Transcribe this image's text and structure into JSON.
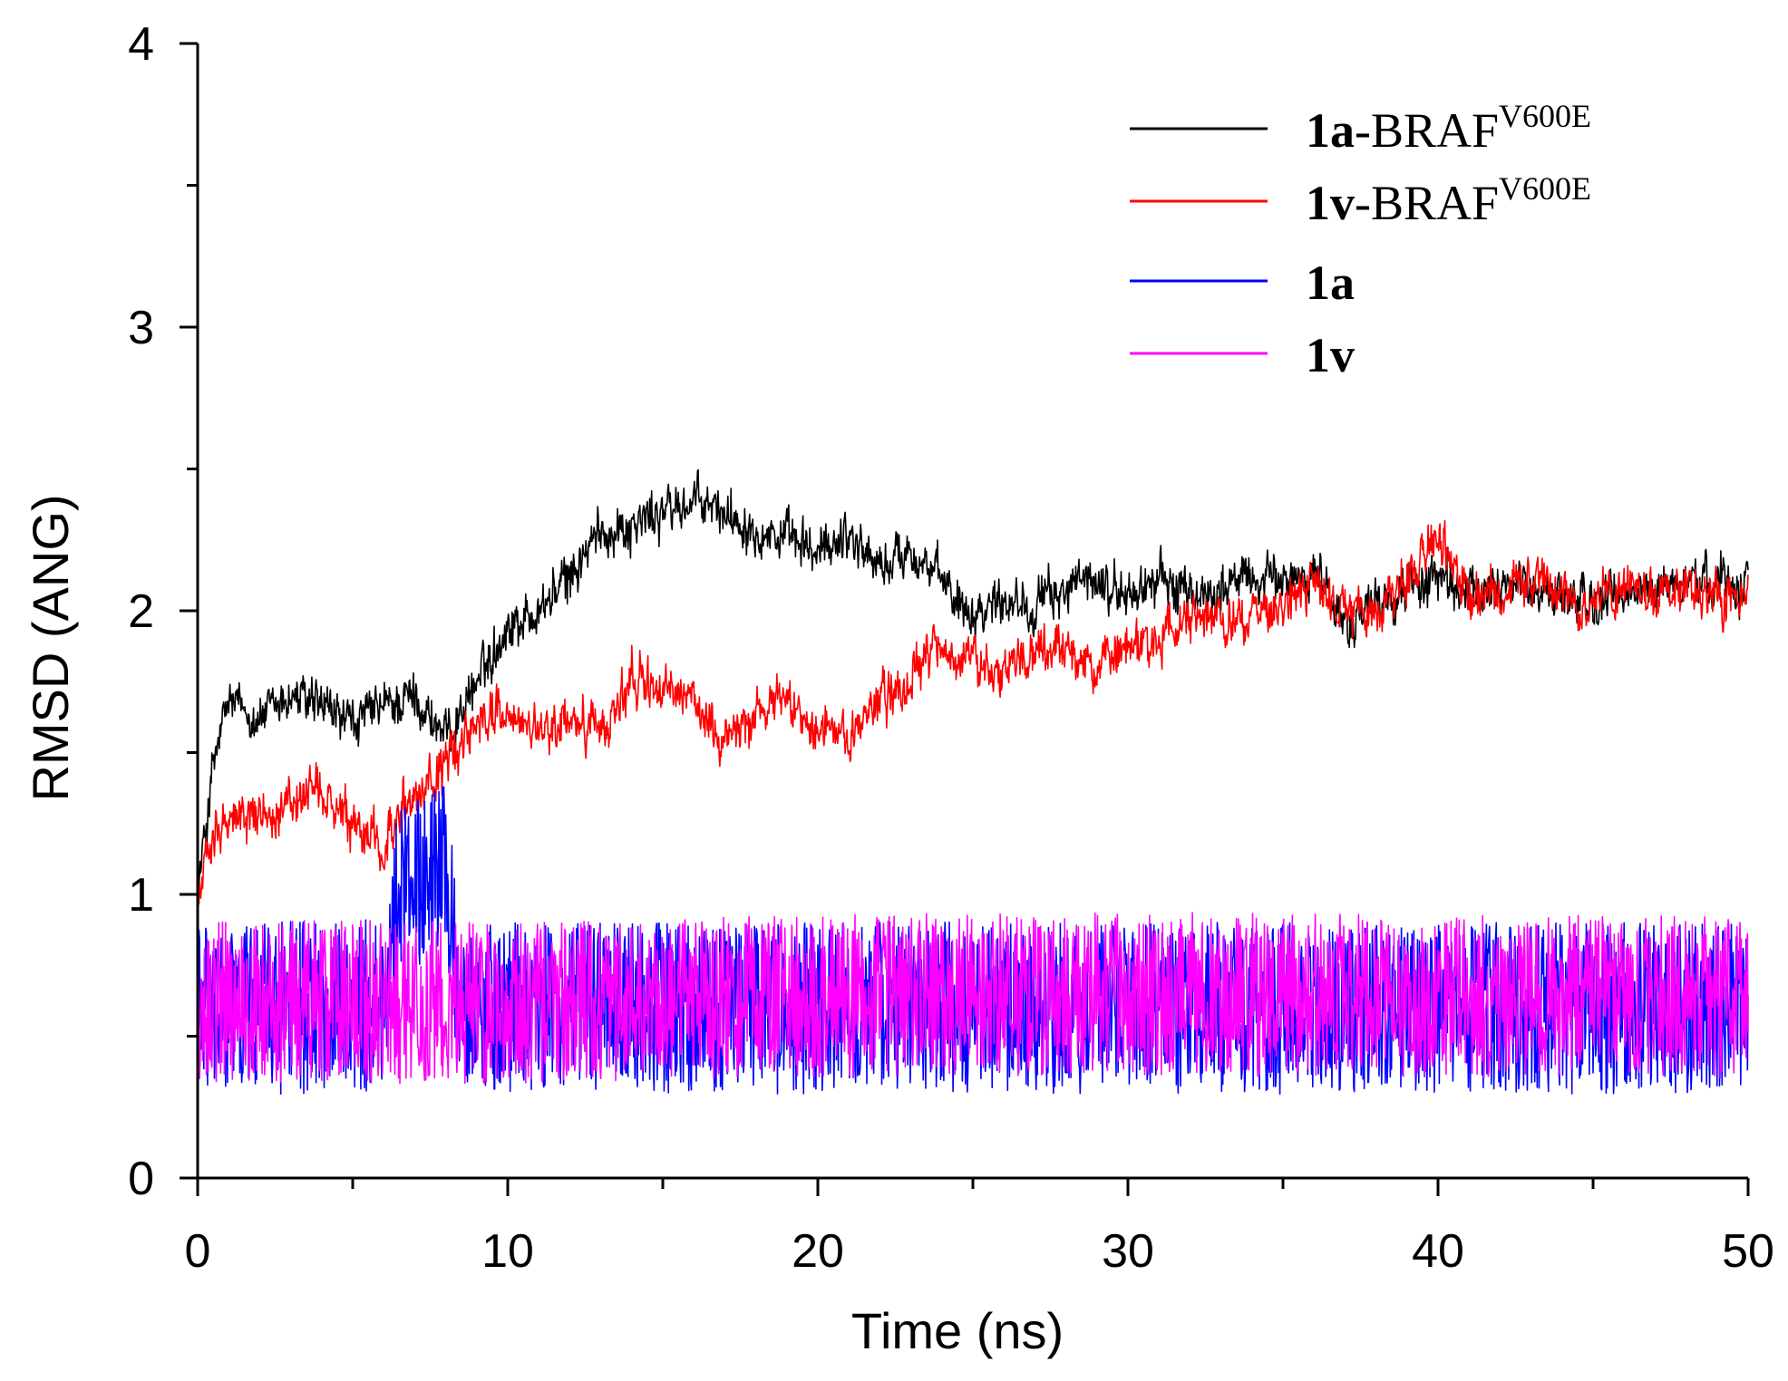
{
  "chart_data": {
    "type": "line",
    "xlabel": "Time (ns)",
    "ylabel": "RMSD (ANG)",
    "xlim": [
      0,
      50
    ],
    "ylim": [
      0,
      4
    ],
    "x_ticks": [
      "0",
      "10",
      "20",
      "30",
      "40",
      "50"
    ],
    "y_ticks": [
      "0",
      "1",
      "2",
      "3",
      "4"
    ],
    "legend_position": "top-right",
    "series": [
      {
        "id": "s1",
        "name": "1a-BRAFV600E",
        "label_bold": "1a",
        "label_rest": "-BRAF",
        "label_sup": "V600E",
        "color": "#000000",
        "x": [
          0,
          0.5,
          1,
          2,
          3,
          4,
          5,
          6,
          7,
          8,
          9,
          10,
          11,
          12,
          13,
          14,
          15,
          16,
          17,
          18,
          19,
          20,
          21,
          22,
          23,
          24,
          25,
          26,
          27,
          28,
          29,
          30,
          31,
          32,
          33,
          34,
          35,
          36,
          37,
          38,
          39,
          40,
          41,
          42,
          43,
          44,
          45,
          46,
          47,
          48,
          49,
          50
        ],
        "y": [
          1.0,
          1.45,
          1.68,
          1.62,
          1.7,
          1.66,
          1.6,
          1.66,
          1.7,
          1.55,
          1.75,
          1.95,
          2.0,
          2.12,
          2.28,
          2.3,
          2.35,
          2.38,
          2.35,
          2.3,
          2.25,
          2.2,
          2.28,
          2.15,
          2.22,
          2.1,
          2.0,
          2.05,
          2.02,
          2.08,
          2.1,
          2.05,
          2.12,
          2.05,
          2.08,
          2.12,
          2.1,
          2.15,
          1.95,
          2.02,
          2.08,
          2.12,
          2.05,
          2.1,
          2.08,
          2.05,
          2.02,
          2.05,
          2.08,
          2.1,
          2.12,
          2.1
        ],
        "noise": 0.09
      },
      {
        "id": "s2",
        "name": "1v-BRAFV600E",
        "label_bold": "1v",
        "label_rest": "-BRAF",
        "label_sup": "V600E",
        "color": "#ff0000",
        "x": [
          0,
          0.5,
          1,
          2,
          3,
          4,
          5,
          6,
          7,
          8,
          9,
          10,
          11,
          12,
          13,
          14,
          15,
          16,
          17,
          18,
          19,
          20,
          21,
          22,
          23,
          24,
          25,
          26,
          27,
          28,
          29,
          30,
          31,
          32,
          33,
          34,
          35,
          36,
          37,
          38,
          39,
          40,
          41,
          42,
          43,
          44,
          45,
          46,
          47,
          48,
          49,
          50
        ],
        "y": [
          0.95,
          1.25,
          1.27,
          1.28,
          1.32,
          1.35,
          1.22,
          1.18,
          1.35,
          1.45,
          1.62,
          1.65,
          1.55,
          1.62,
          1.58,
          1.75,
          1.72,
          1.68,
          1.55,
          1.65,
          1.7,
          1.6,
          1.55,
          1.7,
          1.75,
          1.88,
          1.82,
          1.8,
          1.85,
          1.85,
          1.8,
          1.88,
          1.9,
          1.95,
          1.95,
          1.98,
          2.0,
          2.1,
          2.0,
          2.0,
          2.12,
          2.25,
          2.05,
          2.08,
          2.1,
          2.05,
          2.02,
          2.1,
          2.05,
          2.08,
          2.05,
          2.02
        ],
        "noise": 0.09
      },
      {
        "id": "s3",
        "name": "1a",
        "label_bold": "1a",
        "label_rest": "",
        "label_sup": "",
        "color": "#0000ff",
        "x": [
          0,
          1,
          2,
          3,
          4,
          5,
          6,
          6.5,
          7,
          7.5,
          8,
          8.4,
          9,
          10,
          20,
          30,
          40,
          50
        ],
        "y": [
          0.6,
          0.6,
          0.6,
          0.6,
          0.6,
          0.6,
          0.62,
          1.05,
          1.05,
          1.05,
          1.1,
          0.65,
          0.6,
          0.6,
          0.6,
          0.6,
          0.6,
          0.6
        ],
        "noise": 0.19
      },
      {
        "id": "s4",
        "name": "1v",
        "label_bold": "1v",
        "label_rest": "",
        "label_sup": "",
        "color": "#ff00ff",
        "x": [
          0,
          10,
          20,
          30,
          40,
          50
        ],
        "y": [
          0.62,
          0.62,
          0.64,
          0.65,
          0.64,
          0.64
        ],
        "noise": 0.18
      }
    ]
  }
}
